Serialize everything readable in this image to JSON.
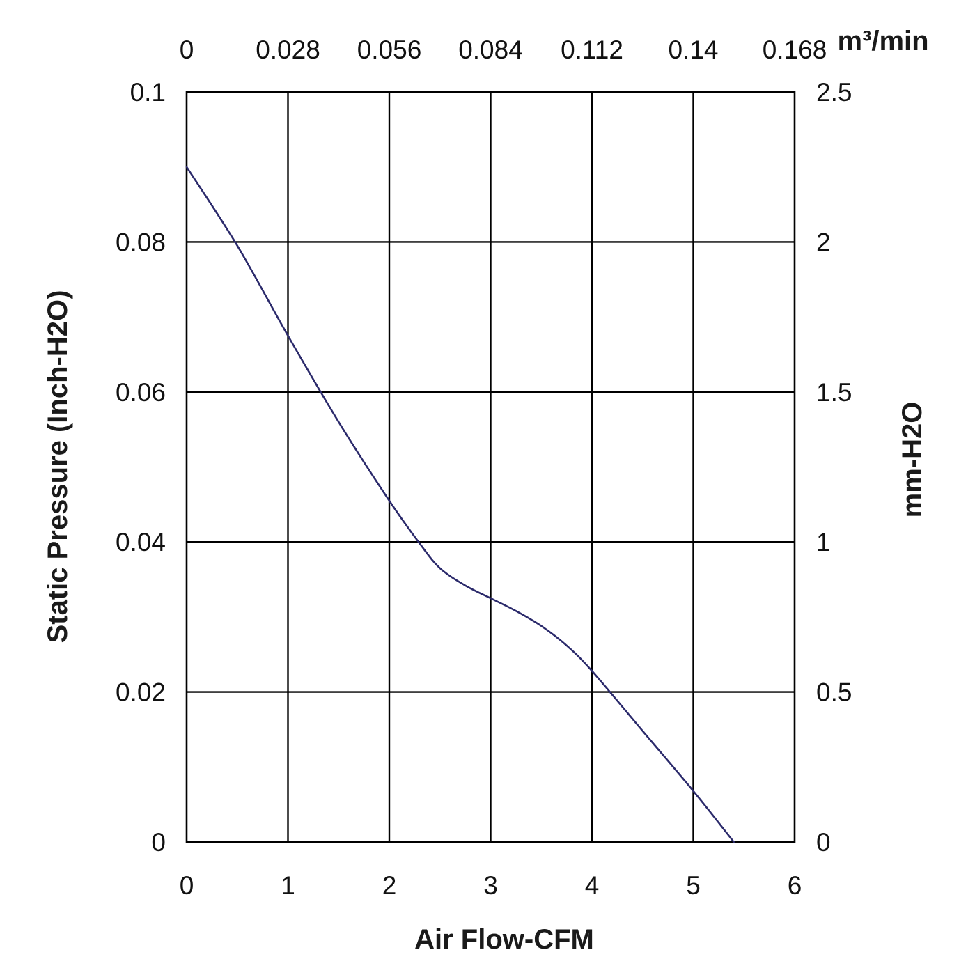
{
  "chart_data": {
    "type": "line",
    "title": "",
    "xlabel": "Air Flow-CFM",
    "ylabel": "Static Pressure (Inch-H2O)",
    "x2label": "m³/min",
    "y2label": "mm-H2O",
    "xlim": [
      0,
      6
    ],
    "ylim": [
      0,
      0.1
    ],
    "x2lim": [
      0,
      0.168
    ],
    "y2lim": [
      0,
      2.5
    ],
    "xticks": [
      "0",
      "1",
      "2",
      "3",
      "4",
      "5",
      "6"
    ],
    "yticks": [
      "0",
      "0.02",
      "0.04",
      "0.06",
      "0.08",
      "0.1"
    ],
    "x2ticks": [
      "0",
      "0.028",
      "0.056",
      "0.084",
      "0.112",
      "0.14",
      "0.168"
    ],
    "y2ticks": [
      "0",
      "0.5",
      "1",
      "1.5",
      "2",
      "2.5"
    ],
    "grid": true,
    "legend": "none",
    "series": [
      {
        "color": "#2b2a6b",
        "x": [
          0,
          0.5,
          1.0,
          1.5,
          2.0,
          2.3,
          2.5,
          2.75,
          3.0,
          3.25,
          3.5,
          3.75,
          4.0,
          4.5,
          5.0,
          5.4
        ],
        "y": [
          0.09,
          0.0795,
          0.0675,
          0.056,
          0.0455,
          0.0398,
          0.0365,
          0.0342,
          0.0325,
          0.0308,
          0.0288,
          0.0262,
          0.0228,
          0.0148,
          0.0068,
          0.0
        ]
      }
    ]
  }
}
